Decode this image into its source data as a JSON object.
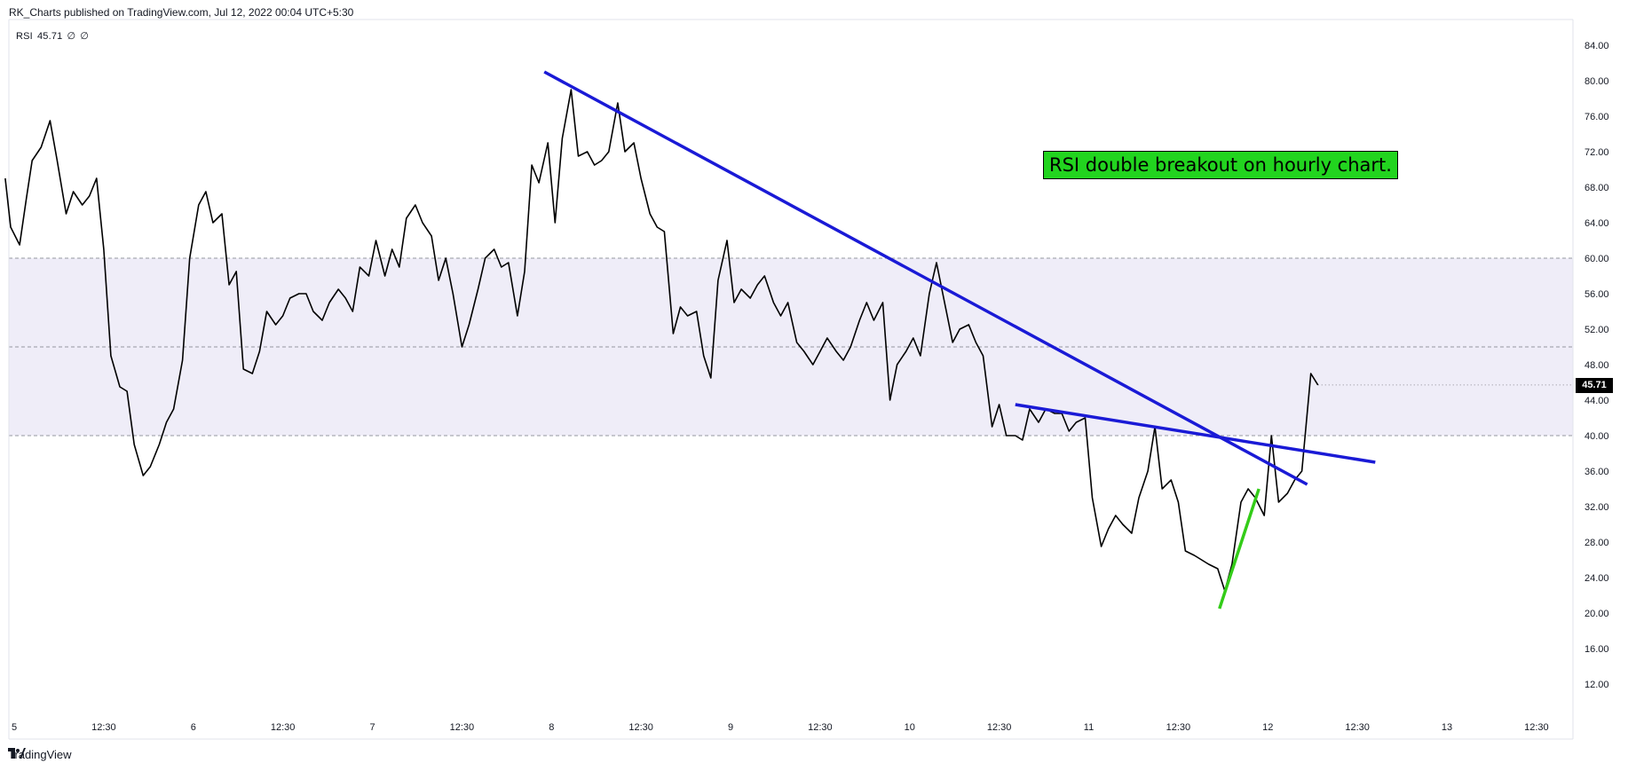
{
  "header": {
    "title": "RK_Charts published on TradingView.com, Jul 12, 2022 00:04 UTC+5:30"
  },
  "legend": {
    "name": "RSI",
    "value": "45.71",
    "p1": "∅",
    "p2": "∅"
  },
  "footer": {
    "brand": "TradingView"
  },
  "annotation": {
    "text": "RSI double breakout on hourly chart."
  },
  "price_tag": "45.71",
  "colors": {
    "line": "#000000",
    "trendline": "#1a1ad6",
    "support": "#33cc18",
    "band": "#efedf8",
    "annotation_bg": "#22d41f"
  },
  "chart_data": {
    "type": "line",
    "ylim": [
      8,
      86
    ],
    "xlim": [
      5,
      13.9
    ],
    "y_ticks": [
      "84.00",
      "80.00",
      "76.00",
      "72.00",
      "68.00",
      "64.00",
      "60.00",
      "56.00",
      "52.00",
      "48.00",
      "44.00",
      "40.00",
      "36.00",
      "32.00",
      "28.00",
      "24.00",
      "20.00",
      "16.00",
      "12.00"
    ],
    "y_tick_values": [
      84,
      80,
      76,
      72,
      68,
      64,
      60,
      56,
      52,
      48,
      44,
      40,
      36,
      32,
      28,
      24,
      20,
      16,
      12
    ],
    "x_ticks": [
      {
        "label": "5",
        "x": 5.0
      },
      {
        "label": "12:30",
        "x": 5.5
      },
      {
        "label": "6",
        "x": 6.0
      },
      {
        "label": "12:30",
        "x": 6.5
      },
      {
        "label": "7",
        "x": 7.0
      },
      {
        "label": "12:30",
        "x": 7.5
      },
      {
        "label": "8",
        "x": 8.0
      },
      {
        "label": "12:30",
        "x": 8.5
      },
      {
        "label": "9",
        "x": 9.0
      },
      {
        "label": "12:30",
        "x": 9.5
      },
      {
        "label": "10",
        "x": 10.0
      },
      {
        "label": "12:30",
        "x": 10.5
      },
      {
        "label": "11",
        "x": 11.0
      },
      {
        "label": "12:30",
        "x": 11.5
      },
      {
        "label": "12",
        "x": 12.0
      },
      {
        "label": "12:30",
        "x": 12.5
      },
      {
        "label": "13",
        "x": 13.0
      },
      {
        "label": "12:30",
        "x": 13.5
      }
    ],
    "band": {
      "upper": 60,
      "middle": 50,
      "lower": 40
    },
    "series": [
      {
        "values": [
          [
            4.95,
            69
          ],
          [
            4.98,
            63.5
          ],
          [
            5.03,
            61.5
          ],
          [
            5.07,
            67
          ],
          [
            5.1,
            71
          ],
          [
            5.15,
            72.5
          ],
          [
            5.2,
            75.5
          ],
          [
            5.24,
            71
          ],
          [
            5.29,
            65
          ],
          [
            5.33,
            67.5
          ],
          [
            5.38,
            66
          ],
          [
            5.42,
            67
          ],
          [
            5.46,
            69
          ],
          [
            5.5,
            61
          ],
          [
            5.54,
            49
          ],
          [
            5.59,
            45.5
          ],
          [
            5.63,
            45
          ],
          [
            5.67,
            39
          ],
          [
            5.72,
            35.5
          ],
          [
            5.76,
            36.5
          ],
          [
            5.81,
            39
          ],
          [
            5.85,
            41.5
          ],
          [
            5.89,
            43
          ],
          [
            5.94,
            48.5
          ],
          [
            5.98,
            60
          ],
          [
            6.03,
            66
          ],
          [
            6.07,
            67.5
          ],
          [
            6.11,
            64
          ],
          [
            6.16,
            65
          ],
          [
            6.2,
            57
          ],
          [
            6.24,
            58.5
          ],
          [
            6.28,
            47.5
          ],
          [
            6.33,
            47
          ],
          [
            6.37,
            49.5
          ],
          [
            6.41,
            54
          ],
          [
            6.46,
            52.5
          ],
          [
            6.5,
            53.5
          ],
          [
            6.54,
            55.5
          ],
          [
            6.59,
            56
          ],
          [
            6.63,
            56
          ],
          [
            6.67,
            54
          ],
          [
            6.72,
            53
          ],
          [
            6.76,
            55
          ],
          [
            6.81,
            56.5
          ],
          [
            6.85,
            55.5
          ],
          [
            6.89,
            54
          ],
          [
            6.93,
            59
          ],
          [
            6.98,
            58
          ],
          [
            7.02,
            62
          ],
          [
            7.07,
            58
          ],
          [
            7.11,
            61
          ],
          [
            7.15,
            59
          ],
          [
            7.19,
            64.5
          ],
          [
            7.24,
            66
          ],
          [
            7.28,
            64
          ],
          [
            7.33,
            62.5
          ],
          [
            7.37,
            57.5
          ],
          [
            7.41,
            60
          ],
          [
            7.45,
            56
          ],
          [
            7.5,
            50
          ],
          [
            7.54,
            52.5
          ],
          [
            7.59,
            56.5
          ],
          [
            7.63,
            60
          ],
          [
            7.68,
            61
          ],
          [
            7.72,
            59
          ],
          [
            7.76,
            59.5
          ],
          [
            7.81,
            53.5
          ],
          [
            7.85,
            58.5
          ],
          [
            7.89,
            70.5
          ],
          [
            7.93,
            68.5
          ],
          [
            7.98,
            73
          ],
          [
            8.02,
            64
          ],
          [
            8.06,
            73.5
          ],
          [
            8.11,
            79
          ],
          [
            8.15,
            71.5
          ],
          [
            8.2,
            72
          ],
          [
            8.24,
            70.5
          ],
          [
            8.28,
            71
          ],
          [
            8.32,
            72
          ],
          [
            8.37,
            77.5
          ],
          [
            8.41,
            72
          ],
          [
            8.46,
            73
          ],
          [
            8.5,
            69
          ],
          [
            8.55,
            65
          ],
          [
            8.59,
            63.5
          ],
          [
            8.63,
            63
          ],
          [
            8.68,
            51.5
          ],
          [
            8.72,
            54.5
          ],
          [
            8.76,
            53.5
          ],
          [
            8.81,
            54
          ],
          [
            8.85,
            49
          ],
          [
            8.89,
            46.5
          ],
          [
            8.93,
            57.5
          ],
          [
            8.98,
            62
          ],
          [
            9.02,
            55
          ],
          [
            9.06,
            56.5
          ],
          [
            9.11,
            55.5
          ],
          [
            9.15,
            57
          ],
          [
            9.19,
            58
          ],
          [
            9.24,
            55
          ],
          [
            9.28,
            53.5
          ],
          [
            9.32,
            55
          ],
          [
            9.37,
            50.5
          ],
          [
            9.41,
            49.5
          ],
          [
            9.46,
            48
          ],
          [
            9.5,
            49.5
          ],
          [
            9.54,
            51
          ],
          [
            9.59,
            49.5
          ],
          [
            9.63,
            48.5
          ],
          [
            9.67,
            50
          ],
          [
            9.72,
            53
          ],
          [
            9.76,
            55
          ],
          [
            9.8,
            53
          ],
          [
            9.85,
            55
          ],
          [
            9.89,
            44
          ],
          [
            9.93,
            48
          ],
          [
            9.98,
            49.5
          ],
          [
            10.02,
            51
          ],
          [
            10.06,
            49
          ],
          [
            10.11,
            56
          ],
          [
            10.15,
            59.5
          ],
          [
            10.2,
            54.5
          ],
          [
            10.24,
            50.5
          ],
          [
            10.28,
            52
          ],
          [
            10.33,
            52.5
          ],
          [
            10.37,
            50.5
          ],
          [
            10.41,
            49
          ],
          [
            10.46,
            41
          ],
          [
            10.5,
            43.5
          ],
          [
            10.54,
            40
          ],
          [
            10.59,
            40
          ],
          [
            10.63,
            39.5
          ],
          [
            10.67,
            43
          ],
          [
            10.72,
            41.5
          ],
          [
            10.76,
            43
          ],
          [
            10.81,
            42.5
          ],
          [
            10.85,
            42.5
          ],
          [
            10.89,
            40.5
          ],
          [
            10.93,
            41.5
          ],
          [
            10.98,
            42
          ],
          [
            11.02,
            33
          ],
          [
            11.07,
            27.5
          ],
          [
            11.11,
            29.5
          ],
          [
            11.15,
            31
          ],
          [
            11.19,
            30
          ],
          [
            11.24,
            29
          ],
          [
            11.28,
            33
          ],
          [
            11.33,
            36
          ],
          [
            11.37,
            41
          ],
          [
            11.41,
            34
          ],
          [
            11.46,
            35
          ],
          [
            11.5,
            32.5
          ],
          [
            11.54,
            27
          ],
          [
            11.59,
            26.5
          ],
          [
            11.63,
            26
          ],
          [
            11.67,
            25.5
          ],
          [
            11.72,
            25
          ],
          [
            11.76,
            22.5
          ],
          [
            11.8,
            25.5
          ],
          [
            11.85,
            32.5
          ],
          [
            11.89,
            34
          ],
          [
            11.93,
            33
          ],
          [
            11.98,
            31
          ],
          [
            12.02,
            40
          ],
          [
            12.06,
            32.5
          ],
          [
            12.11,
            33.5
          ],
          [
            12.15,
            35
          ],
          [
            12.19,
            36
          ],
          [
            12.24,
            47
          ],
          [
            12.28,
            45.71
          ]
        ]
      }
    ]
  }
}
